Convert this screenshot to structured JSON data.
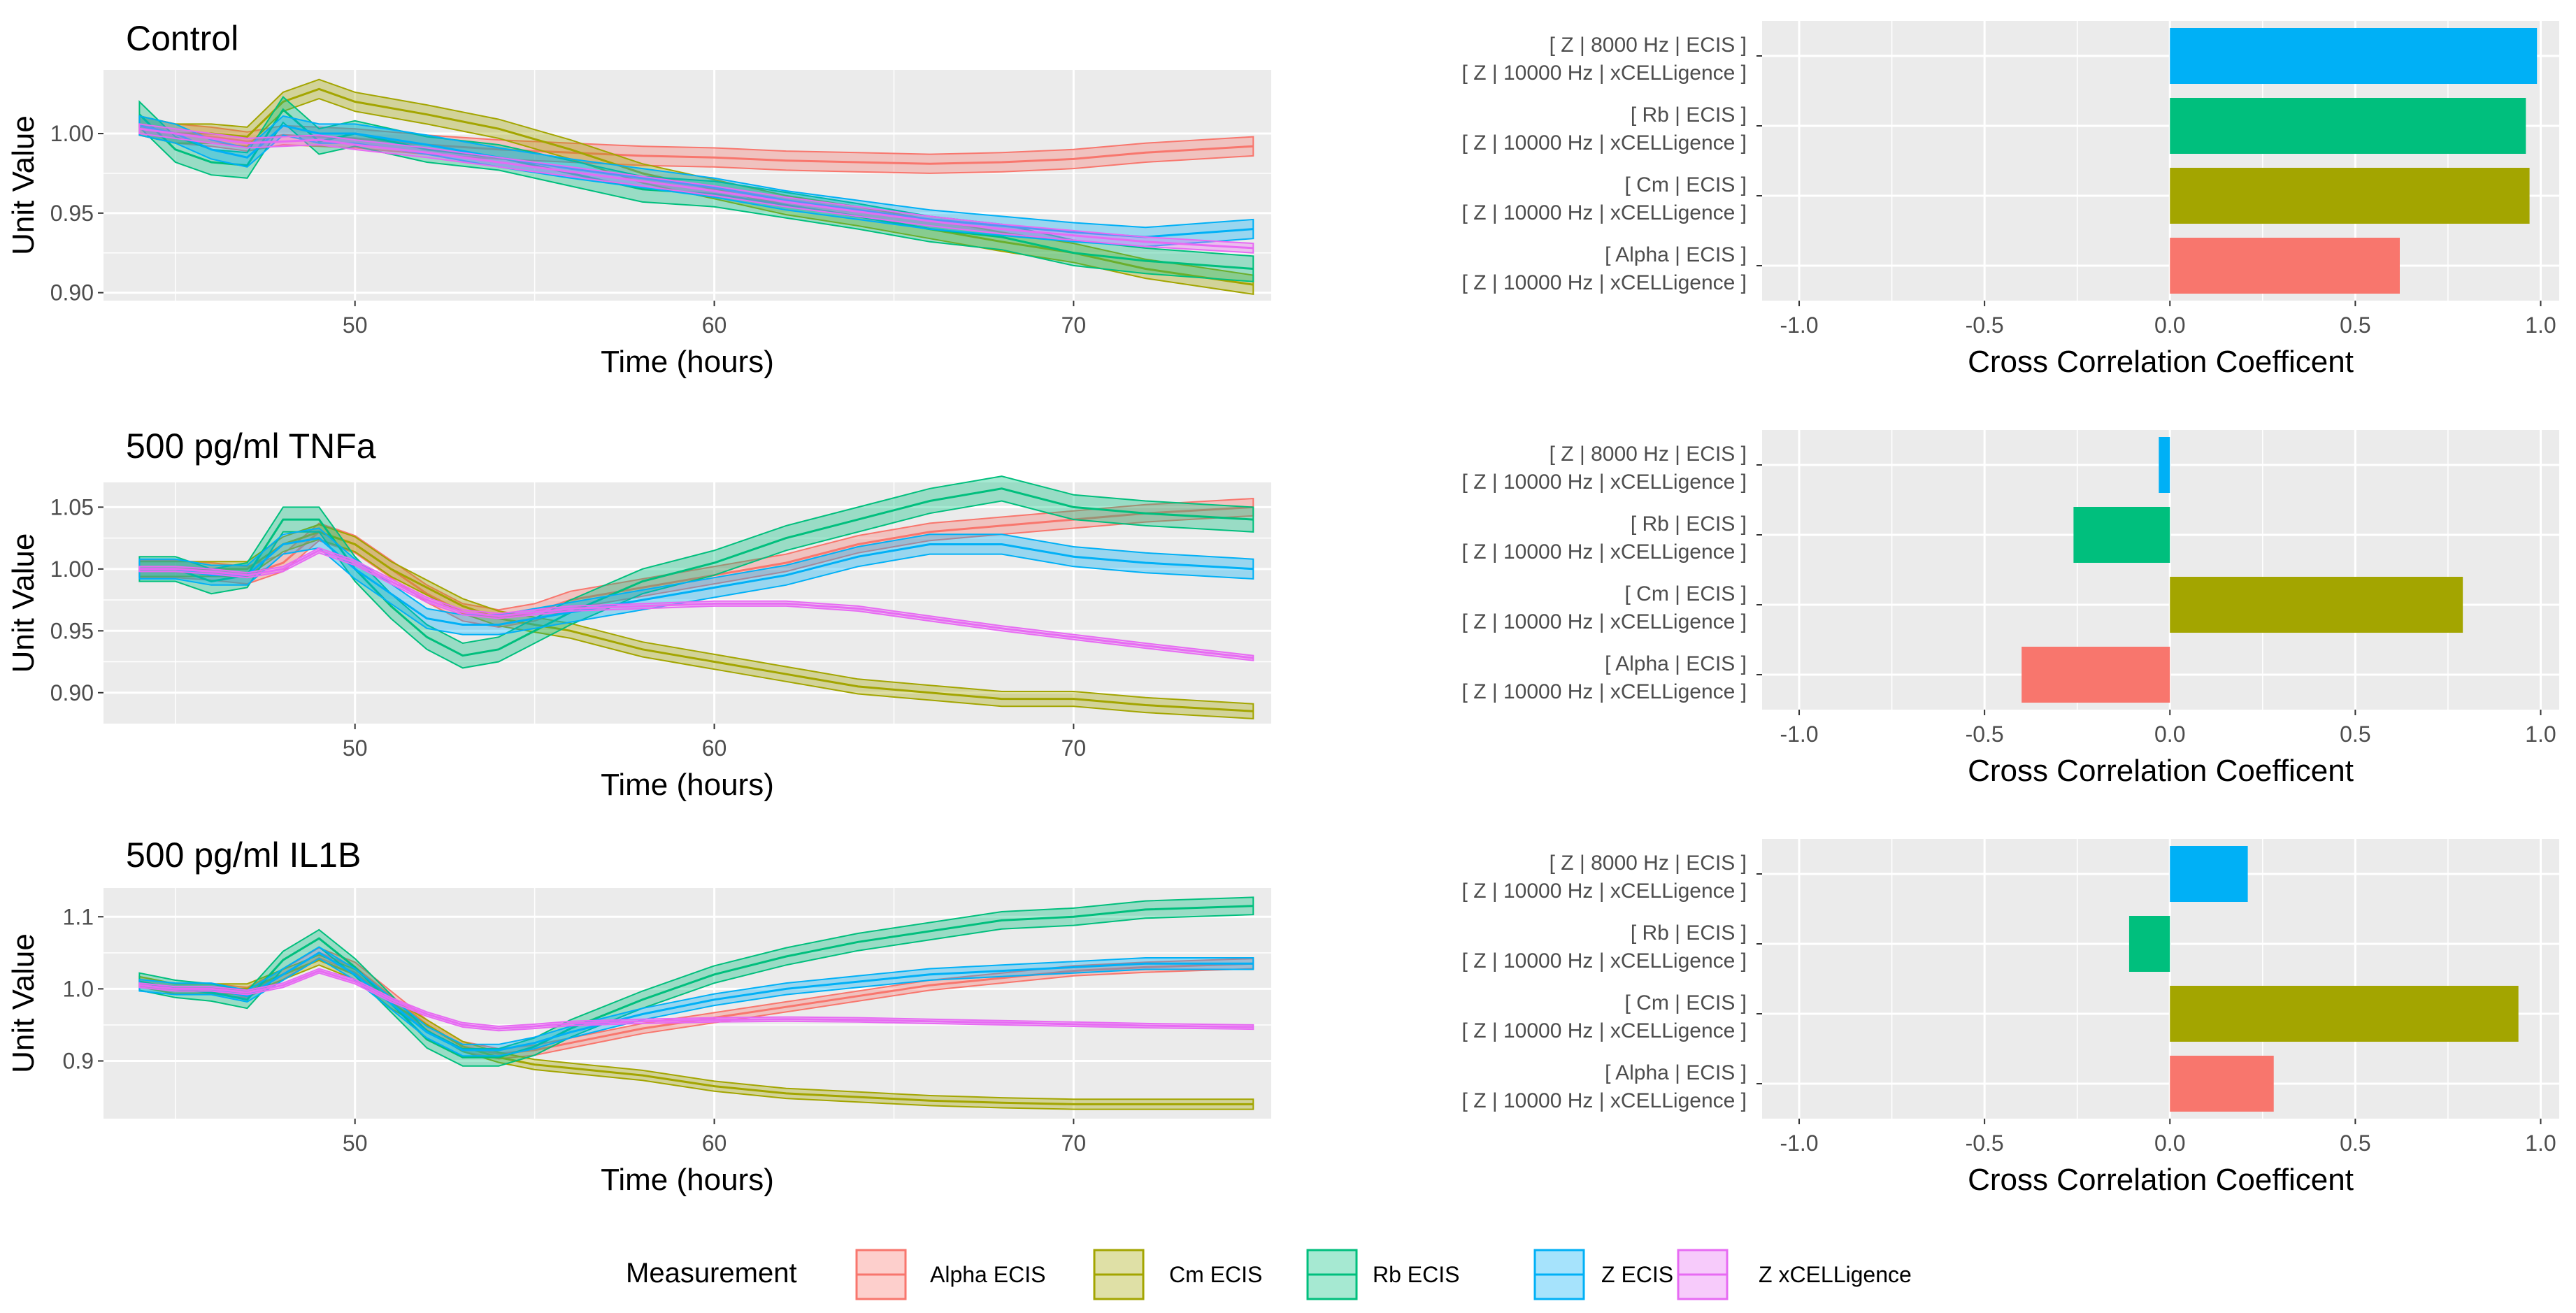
{
  "colors": {
    "alpha": "#F8766D",
    "cm": "#A3A500",
    "rb": "#00BF7D",
    "z": "#00B0F6",
    "zx": "#E76BF3",
    "panel_bg": "#EBEBEB",
    "grid": "#FFFFFF"
  },
  "legend": {
    "title": "Measurement",
    "items": [
      {
        "key": "alpha",
        "label": "Alpha ECIS"
      },
      {
        "key": "cm",
        "label": "Cm ECIS"
      },
      {
        "key": "rb",
        "label": "Rb ECIS"
      },
      {
        "key": "z",
        "label": "Z ECIS"
      },
      {
        "key": "zx",
        "label": "Z xCELLigence"
      }
    ]
  },
  "chart_data": [
    {
      "type": "line",
      "title": "Control",
      "xlabel": "Time (hours)",
      "ylabel": "Unit Value",
      "xlim": [
        43,
        75.5
      ],
      "ylim": [
        0.895,
        1.04
      ],
      "xticks": [
        50,
        60,
        70
      ],
      "yticks": [
        0.9,
        0.95,
        1.0
      ],
      "ytick_labels": [
        "0.90",
        "0.95",
        "1.00"
      ],
      "x": [
        44,
        45,
        46,
        47,
        48,
        49,
        50,
        52,
        54,
        56,
        58,
        60,
        62,
        64,
        66,
        68,
        70,
        72,
        75
      ],
      "series": [
        {
          "key": "alpha",
          "name": "Alpha ECIS",
          "values": [
            1.005,
            1.0,
            0.998,
            0.995,
            0.999,
            0.998,
            0.997,
            0.993,
            0.99,
            0.988,
            0.986,
            0.985,
            0.983,
            0.982,
            0.981,
            0.982,
            0.984,
            0.988,
            0.992
          ],
          "band": 0.006
        },
        {
          "key": "cm",
          "name": "Cm ECIS",
          "values": [
            1.005,
            1.0,
            1.0,
            0.998,
            1.02,
            1.028,
            1.02,
            1.012,
            1.003,
            0.99,
            0.975,
            0.965,
            0.955,
            0.948,
            0.94,
            0.932,
            0.925,
            0.915,
            0.905
          ],
          "band": 0.006
        },
        {
          "key": "rb",
          "name": "Rb ECIS",
          "values": [
            1.012,
            0.99,
            0.982,
            0.98,
            1.015,
            0.995,
            1.0,
            0.99,
            0.985,
            0.975,
            0.965,
            0.962,
            0.955,
            0.948,
            0.94,
            0.935,
            0.925,
            0.92,
            0.915
          ],
          "band": 0.008
        },
        {
          "key": "z",
          "name": "Z ECIS",
          "values": [
            1.005,
            1.0,
            0.99,
            0.985,
            1.005,
            1.0,
            1.0,
            0.993,
            0.985,
            0.978,
            0.972,
            0.966,
            0.958,
            0.952,
            0.946,
            0.942,
            0.938,
            0.935,
            0.94
          ],
          "band": 0.006
        },
        {
          "key": "zx",
          "name": "Z xCELLigence",
          "values": [
            1.003,
            1.0,
            0.997,
            0.994,
            0.995,
            0.996,
            0.993,
            0.988,
            0.982,
            0.976,
            0.97,
            0.964,
            0.957,
            0.951,
            0.945,
            0.94,
            0.936,
            0.932,
            0.928
          ],
          "band": 0.003
        }
      ]
    },
    {
      "type": "bar",
      "title": "",
      "xlabel": "Cross Correlation Coefficent",
      "xlim": [
        -1.1,
        1.05
      ],
      "xticks": [
        -1.0,
        -0.5,
        0.0,
        0.5,
        1.0
      ],
      "xtick_labels": [
        "-1.0",
        "-0.5",
        "0.0",
        "0.5",
        "1.0"
      ],
      "categories": [
        {
          "key": "z",
          "line1": "[ Z  | 8000 Hz | ECIS  ]",
          "line2": "[ Z  | 10000 Hz | xCELLigence  ]"
        },
        {
          "key": "rb",
          "line1": "[ Rb  | ECIS  ]",
          "line2": "[ Z  | 10000 Hz | xCELLigence  ]"
        },
        {
          "key": "cm",
          "line1": "[ Cm  | ECIS  ]",
          "line2": "[ Z  | 10000 Hz | xCELLigence  ]"
        },
        {
          "key": "alpha",
          "line1": "[ Alpha  | ECIS  ]",
          "line2": "[ Z  | 10000 Hz | xCELLigence  ]"
        }
      ],
      "values": [
        0.99,
        0.96,
        0.97,
        0.62
      ]
    },
    {
      "type": "line",
      "title": "500 pg/ml TNFa",
      "xlabel": "Time (hours)",
      "ylabel": "Unit Value",
      "xlim": [
        43,
        75.5
      ],
      "ylim": [
        0.875,
        1.07
      ],
      "xticks": [
        50,
        60,
        70
      ],
      "yticks": [
        0.9,
        0.95,
        1.0,
        1.05
      ],
      "ytick_labels": [
        "0.90",
        "0.95",
        "1.00",
        "1.05"
      ],
      "x": [
        44,
        45,
        46,
        47,
        48,
        49,
        50,
        51,
        52,
        53,
        54,
        55,
        56,
        58,
        60,
        62,
        64,
        66,
        68,
        70,
        72,
        75
      ],
      "series": [
        {
          "key": "alpha",
          "name": "Alpha ECIS",
          "values": [
            1.0,
            1.0,
            0.998,
            0.995,
            1.005,
            1.03,
            1.02,
            1.0,
            0.98,
            0.965,
            0.96,
            0.965,
            0.975,
            0.985,
            0.995,
            1.005,
            1.02,
            1.03,
            1.035,
            1.04,
            1.045,
            1.05
          ],
          "band": 0.007
        },
        {
          "key": "cm",
          "name": "Cm ECIS",
          "values": [
            1.0,
            1.0,
            1.0,
            1.0,
            1.02,
            1.03,
            1.02,
            1.0,
            0.985,
            0.97,
            0.96,
            0.955,
            0.95,
            0.935,
            0.925,
            0.915,
            0.905,
            0.9,
            0.895,
            0.895,
            0.89,
            0.885
          ],
          "band": 0.006
        },
        {
          "key": "rb",
          "name": "Rb ECIS",
          "values": [
            1.0,
            1.0,
            0.99,
            0.995,
            1.04,
            1.04,
            1.0,
            0.97,
            0.945,
            0.93,
            0.935,
            0.95,
            0.965,
            0.99,
            1.005,
            1.025,
            1.04,
            1.055,
            1.065,
            1.05,
            1.045,
            1.04
          ],
          "band": 0.01
        },
        {
          "key": "z",
          "name": "Z ECIS",
          "values": [
            1.0,
            1.0,
            0.995,
            0.995,
            1.02,
            1.025,
            1.0,
            0.98,
            0.96,
            0.955,
            0.955,
            0.96,
            0.965,
            0.975,
            0.985,
            0.995,
            1.01,
            1.02,
            1.02,
            1.01,
            1.005,
            1.0
          ],
          "band": 0.008
        },
        {
          "key": "zx",
          "name": "Z xCELLigence",
          "values": [
            1.0,
            1.0,
            0.998,
            0.995,
            1.0,
            1.015,
            1.005,
            0.99,
            0.975,
            0.965,
            0.962,
            0.965,
            0.968,
            0.97,
            0.972,
            0.972,
            0.968,
            0.96,
            0.952,
            0.945,
            0.938,
            0.928
          ],
          "band": 0.002
        }
      ]
    },
    {
      "type": "bar",
      "title": "",
      "xlabel": "Cross Correlation Coefficent",
      "xlim": [
        -1.1,
        1.05
      ],
      "xticks": [
        -1.0,
        -0.5,
        0.0,
        0.5,
        1.0
      ],
      "xtick_labels": [
        "-1.0",
        "-0.5",
        "0.0",
        "0.5",
        "1.0"
      ],
      "categories": [
        {
          "key": "z",
          "line1": "[ Z  | 8000 Hz | ECIS  ]",
          "line2": "[ Z  | 10000 Hz | xCELLigence  ]"
        },
        {
          "key": "rb",
          "line1": "[ Rb  | ECIS  ]",
          "line2": "[ Z  | 10000 Hz | xCELLigence  ]"
        },
        {
          "key": "cm",
          "line1": "[ Cm  | ECIS  ]",
          "line2": "[ Z  | 10000 Hz | xCELLigence  ]"
        },
        {
          "key": "alpha",
          "line1": "[ Alpha  | ECIS  ]",
          "line2": "[ Z  | 10000 Hz | xCELLigence  ]"
        }
      ],
      "values": [
        -0.03,
        -0.26,
        0.79,
        -0.4
      ]
    },
    {
      "type": "line",
      "title": "500 pg/ml IL1B",
      "xlabel": "Time (hours)",
      "ylabel": "Unit Value",
      "xlim": [
        43,
        75.5
      ],
      "ylim": [
        0.82,
        1.14
      ],
      "xticks": [
        50,
        60,
        70
      ],
      "yticks": [
        0.9,
        1.0,
        1.1
      ],
      "ytick_labels": [
        "0.9",
        "1.0",
        "1.1"
      ],
      "x": [
        44,
        45,
        46,
        47,
        48,
        49,
        50,
        51,
        52,
        53,
        54,
        55,
        56,
        58,
        60,
        62,
        64,
        66,
        68,
        70,
        72,
        75
      ],
      "series": [
        {
          "key": "alpha",
          "name": "Alpha ECIS",
          "values": [
            1.01,
            1.0,
            1.0,
            0.995,
            1.02,
            1.05,
            1.03,
            0.99,
            0.95,
            0.92,
            0.91,
            0.915,
            0.925,
            0.945,
            0.96,
            0.975,
            0.99,
            1.005,
            1.015,
            1.025,
            1.03,
            1.035
          ],
          "band": 0.007
        },
        {
          "key": "cm",
          "name": "Cm ECIS",
          "values": [
            1.01,
            1.0,
            1.0,
            1.0,
            1.02,
            1.04,
            1.02,
            0.98,
            0.95,
            0.92,
            0.905,
            0.895,
            0.89,
            0.88,
            0.865,
            0.855,
            0.85,
            0.845,
            0.842,
            0.84,
            0.84,
            0.84
          ],
          "band": 0.007
        },
        {
          "key": "rb",
          "name": "Rb ECIS",
          "values": [
            1.01,
            1.0,
            0.995,
            0.985,
            1.04,
            1.07,
            1.03,
            0.98,
            0.93,
            0.905,
            0.905,
            0.92,
            0.945,
            0.985,
            1.02,
            1.045,
            1.065,
            1.08,
            1.095,
            1.1,
            1.11,
            1.115
          ],
          "band": 0.012
        },
        {
          "key": "z",
          "name": "Z ECIS",
          "values": [
            1.005,
            1.0,
            1.0,
            0.99,
            1.02,
            1.05,
            1.02,
            0.98,
            0.94,
            0.915,
            0.915,
            0.925,
            0.94,
            0.965,
            0.985,
            1.0,
            1.01,
            1.02,
            1.025,
            1.03,
            1.035,
            1.035
          ],
          "band": 0.008
        },
        {
          "key": "zx",
          "name": "Z xCELLigence",
          "values": [
            1.005,
            1.0,
            1.0,
            0.995,
            1.005,
            1.025,
            1.01,
            0.985,
            0.965,
            0.95,
            0.945,
            0.948,
            0.952,
            0.955,
            0.957,
            0.958,
            0.957,
            0.955,
            0.953,
            0.951,
            0.949,
            0.947
          ],
          "band": 0.003
        }
      ]
    },
    {
      "type": "bar",
      "title": "",
      "xlabel": "Cross Correlation Coefficent",
      "xlim": [
        -1.1,
        1.05
      ],
      "xticks": [
        -1.0,
        -0.5,
        0.0,
        0.5,
        1.0
      ],
      "xtick_labels": [
        "-1.0",
        "-0.5",
        "0.0",
        "0.5",
        "1.0"
      ],
      "categories": [
        {
          "key": "z",
          "line1": "[ Z  | 8000 Hz | ECIS  ]",
          "line2": "[ Z  | 10000 Hz | xCELLigence  ]"
        },
        {
          "key": "rb",
          "line1": "[ Rb  | ECIS  ]",
          "line2": "[ Z  | 10000 Hz | xCELLigence  ]"
        },
        {
          "key": "cm",
          "line1": "[ Cm  | ECIS  ]",
          "line2": "[ Z  | 10000 Hz | xCELLigence  ]"
        },
        {
          "key": "alpha",
          "line1": "[ Alpha  | ECIS  ]",
          "line2": "[ Z  | 10000 Hz | xCELLigence  ]"
        }
      ],
      "values": [
        0.21,
        -0.11,
        0.94,
        0.28
      ]
    }
  ]
}
